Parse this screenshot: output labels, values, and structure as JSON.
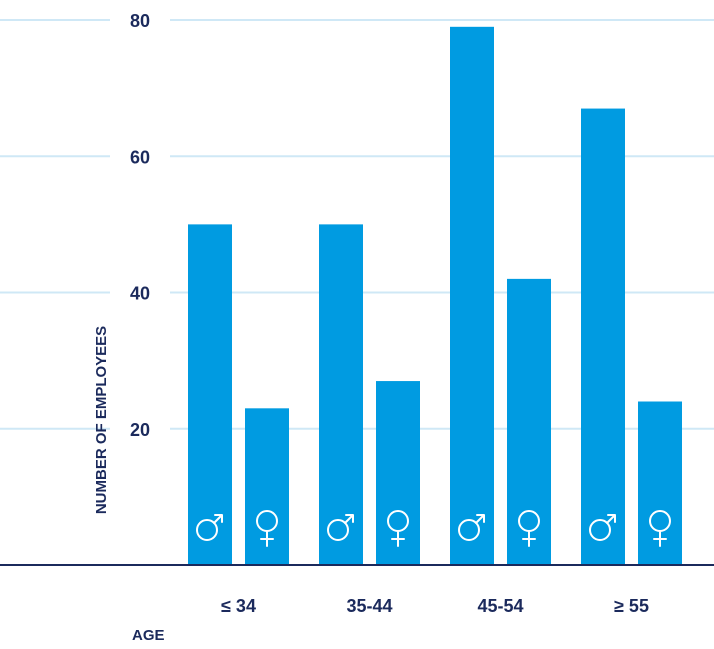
{
  "chart_data": {
    "type": "bar",
    "xlabel": "AGE",
    "ylabel": "NUMBER OF EMPLOYEES",
    "ylim": [
      0,
      80
    ],
    "yticks": [
      20,
      40,
      60,
      80
    ],
    "grid": true,
    "categories": [
      "≤ 34",
      "35-44",
      "45-54",
      "≥ 55"
    ],
    "series": [
      {
        "symbol": "♂",
        "values": [
          50,
          50,
          79,
          67
        ]
      },
      {
        "symbol": "♀",
        "values": [
          23,
          27,
          42,
          24
        ]
      }
    ],
    "colors": {
      "bar": "#009be1",
      "grid": "#cfe8f6",
      "axis": "#1b2a5c",
      "text": "#1b2a5c"
    }
  }
}
